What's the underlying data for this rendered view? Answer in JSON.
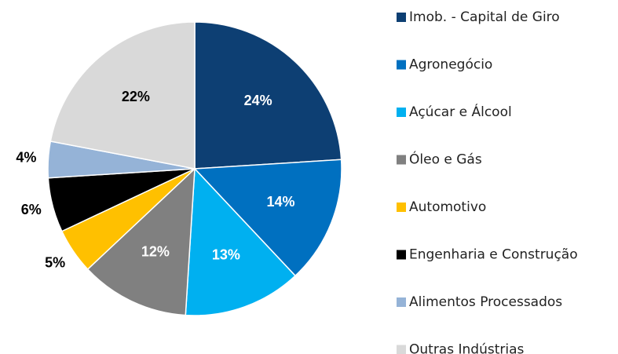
{
  "chart_data": {
    "type": "pie",
    "categories": [
      "Imob. - Capital de Giro",
      "Agronegócio",
      "Açúcar e Álcool",
      "Óleo e Gás",
      "Automotivo",
      "Engenharia e Construção",
      "Alimentos Processados",
      "Outras Indústrias"
    ],
    "values": [
      24,
      14,
      13,
      12,
      5,
      6,
      4,
      22
    ],
    "value_labels": [
      "24%",
      "14%",
      "13%",
      "12%",
      "5%",
      "6%",
      "4%",
      "22%"
    ],
    "colors": [
      "#0d3f73",
      "#0070c0",
      "#00b0f0",
      "#808080",
      "#ffc000",
      "#000000",
      "#95b3d7",
      "#d9d9d9"
    ],
    "legend": "right"
  }
}
